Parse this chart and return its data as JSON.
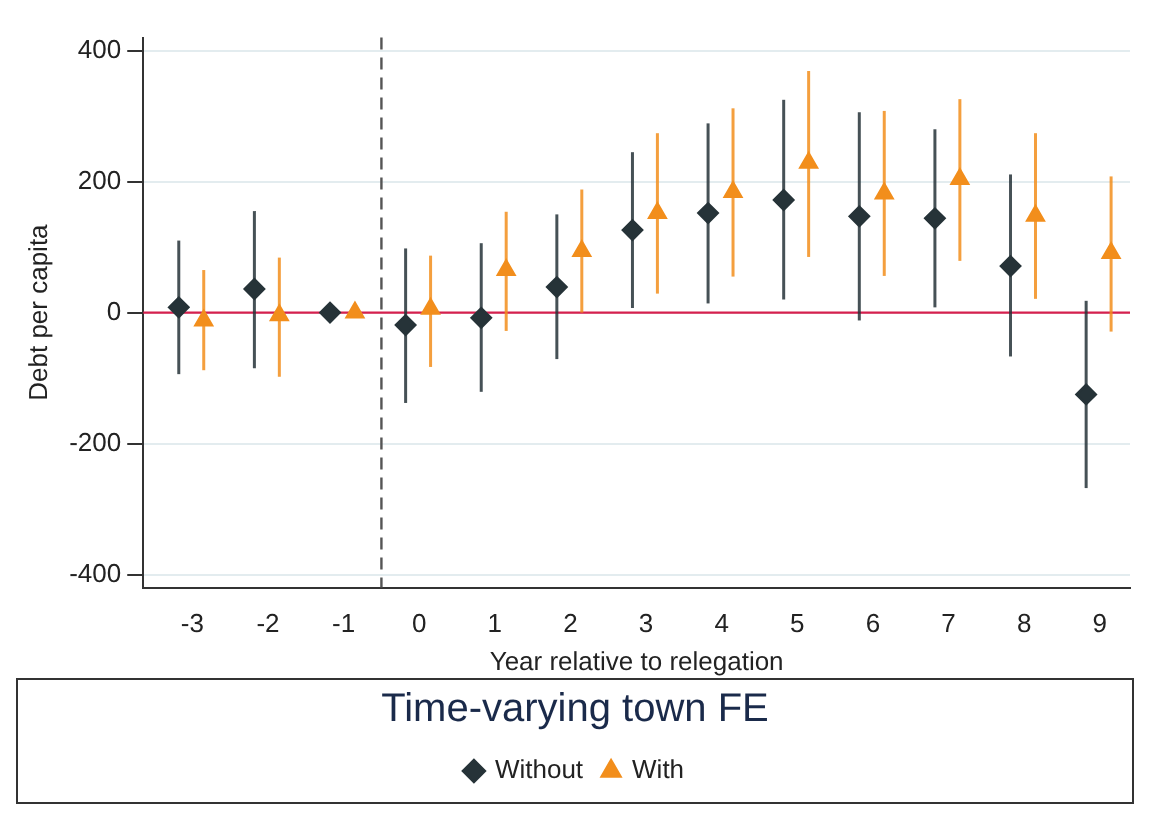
{
  "chart_data": {
    "type": "scatter",
    "xlabel": "Year relative to relegation",
    "ylabel": "Debt per capita",
    "legend_title": "Time-varying town FE",
    "xlim": [
      -3.65,
      9.4
    ],
    "xticks": [
      -3,
      -2,
      -1,
      0,
      1,
      2,
      3,
      4,
      5,
      6,
      7,
      8,
      9
    ],
    "ylim": [
      -420,
      420
    ],
    "yticks": [
      -400,
      -200,
      0,
      200,
      400
    ],
    "grid": "y",
    "legend": "bottom",
    "ref_lines": [
      {
        "axis": "y",
        "value": 0,
        "color": "#d6204e",
        "line_style": "solid"
      },
      {
        "axis": "x",
        "value": -0.5,
        "color": "#555555",
        "line_style": "dashed"
      }
    ],
    "series": [
      {
        "name": "Without",
        "color": "#263338",
        "marker": "diamond",
        "x": [
          -3.18,
          -2.18,
          -1.18,
          -0.18,
          0.82,
          1.82,
          2.82,
          3.82,
          4.82,
          5.82,
          6.82,
          7.82,
          8.82
        ],
        "values": [
          8,
          36,
          0,
          -19,
          -8,
          39,
          126,
          152,
          172,
          147,
          144,
          71,
          -125
        ],
        "errors": [
          [
            -94,
            110
          ],
          [
            -85,
            155
          ],
          null,
          [
            -138,
            98
          ],
          [
            -121,
            106
          ],
          [
            -71,
            150
          ],
          [
            7,
            245
          ],
          [
            14,
            289
          ],
          [
            20,
            325
          ],
          [
            -12,
            306
          ],
          [
            8,
            280
          ],
          [
            -67,
            211
          ],
          [
            -268,
            18
          ]
        ]
      },
      {
        "name": "With",
        "color": "#f28e1c",
        "marker": "triangle",
        "x": [
          -2.85,
          -1.85,
          -0.85,
          0.15,
          1.15,
          2.15,
          3.15,
          4.15,
          5.15,
          6.15,
          7.15,
          8.15,
          9.15
        ],
        "values": [
          -12,
          -4,
          0,
          6,
          65,
          94,
          152,
          184,
          229,
          182,
          204,
          148,
          91
        ],
        "errors": [
          [
            -88,
            65
          ],
          [
            -98,
            84
          ],
          null,
          [
            -83,
            87
          ],
          [
            -28,
            154
          ],
          [
            0,
            188
          ],
          [
            29,
            274
          ],
          [
            55,
            312
          ],
          [
            85,
            369
          ],
          [
            56,
            308
          ],
          [
            79,
            326
          ],
          [
            21,
            274
          ],
          [
            -29,
            208
          ]
        ]
      }
    ]
  }
}
